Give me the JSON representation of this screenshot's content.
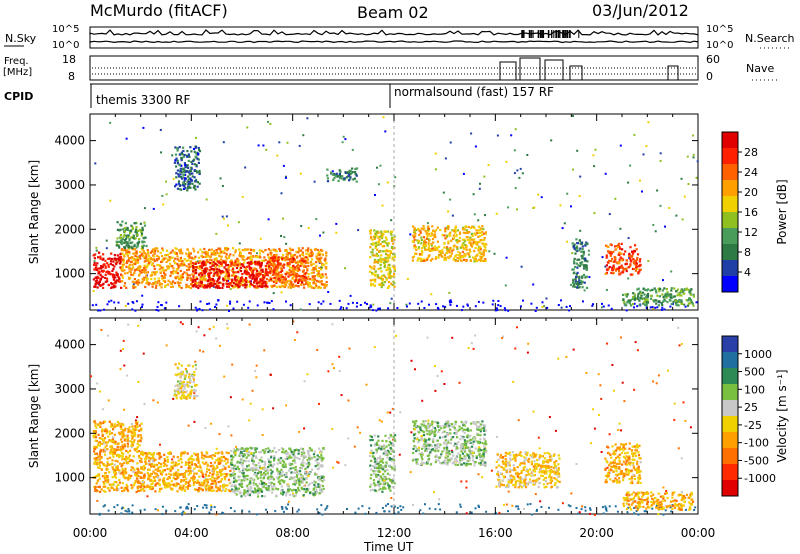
{
  "header": {
    "site": "McMurdo (fitACF)",
    "beam": "Beam 02",
    "date": "03/Jun/2012"
  },
  "strips": {
    "nsky_label": "N.Sky",
    "nsky_ticks": [
      "10^5",
      "10^0"
    ],
    "nsearch_label": "N.Search",
    "nsearch_ticks": [
      "10^5",
      "10^0"
    ],
    "freq_label": "Freq.",
    "freq_unit": "[MHz]",
    "freq_ticks": [
      "18",
      "8"
    ],
    "nave_label": "Nave",
    "nave_ticks": [
      "60",
      "0"
    ],
    "cpid_label": "CPID",
    "cpid_segments": [
      "themis 3300 RF",
      "normalsound (fast) 157 RF"
    ]
  },
  "colors": {
    "power": [
      "#0000ff",
      "#1f3fa6",
      "#2e7a44",
      "#4a9c5a",
      "#90c020",
      "#f0d000",
      "#ffa000",
      "#ff6000",
      "#ff2000",
      "#e00000"
    ],
    "velocity": [
      "#2a3fa8",
      "#1f6fa0",
      "#2e8a55",
      "#7ac040",
      "#c8c8c8",
      "#f0d000",
      "#ffa000",
      "#ff7000",
      "#ff2a00",
      "#e00000"
    ],
    "grid_dash": "#aaaaaa"
  },
  "chart_data": [
    {
      "type": "heatmap",
      "panel": "power",
      "ylabel": "Slant Range [km]",
      "xlabel": "Time UT",
      "ylim": [
        180,
        4600
      ],
      "xlim": [
        0,
        24
      ],
      "x_ticks": [
        "00:00",
        "04:00",
        "08:00",
        "12:00",
        "16:00",
        "20:00",
        "00:00"
      ],
      "y_ticks": [
        1000,
        2000,
        3000,
        4000
      ],
      "colorbar": {
        "label": "Power [dB]",
        "ticks": [
          "28",
          "24",
          "20",
          "16",
          "12",
          "8",
          "4"
        ],
        "range": [
          0,
          30
        ]
      },
      "regions": [
        {
          "t0": 0.1,
          "t1": 1.2,
          "r0": 700,
          "r1": 1500,
          "value": 28
        },
        {
          "t0": 1.2,
          "t1": 9.3,
          "r0": 700,
          "r1": 1600,
          "value": 20
        },
        {
          "t0": 4.0,
          "t1": 7.0,
          "r0": 700,
          "r1": 1300,
          "value": 28
        },
        {
          "t0": 7.0,
          "t1": 8.5,
          "r0": 800,
          "r1": 1400,
          "value": 24
        },
        {
          "t0": 1.0,
          "t1": 2.2,
          "r0": 1600,
          "r1": 2200,
          "value": 10
        },
        {
          "t0": 3.3,
          "t1": 4.3,
          "r0": 2900,
          "r1": 3900,
          "value": 6
        },
        {
          "t0": 9.3,
          "t1": 10.5,
          "r0": 3100,
          "r1": 3400,
          "value": 8
        },
        {
          "t0": 11.0,
          "t1": 12.0,
          "r0": 700,
          "r1": 2000,
          "value": 16
        },
        {
          "t0": 12.7,
          "t1": 15.6,
          "r0": 1300,
          "r1": 2100,
          "value": 18
        },
        {
          "t0": 19.0,
          "t1": 19.6,
          "r0": 700,
          "r1": 1800,
          "value": 8
        },
        {
          "t0": 20.3,
          "t1": 21.7,
          "r0": 1000,
          "r1": 1700,
          "value": 24
        },
        {
          "t0": 21.0,
          "t1": 23.8,
          "r0": 300,
          "r1": 700,
          "value": 10
        }
      ]
    },
    {
      "type": "heatmap",
      "panel": "velocity",
      "ylabel": "Slant Range [km]",
      "xlabel": "Time UT",
      "ylim": [
        180,
        4600
      ],
      "xlim": [
        0,
        24
      ],
      "x_ticks": [
        "00:00",
        "04:00",
        "08:00",
        "12:00",
        "16:00",
        "20:00",
        "00:00"
      ],
      "y_ticks": [
        1000,
        2000,
        3000,
        4000
      ],
      "colorbar": {
        "label": "Velocity [m s⁻¹]",
        "ticks": [
          "1000",
          "500",
          "100",
          "25",
          "-25",
          "-100",
          "-500",
          "-1000"
        ],
        "range": [
          -1250,
          1250
        ]
      },
      "regions": [
        {
          "t0": 0.1,
          "t1": 2.0,
          "r0": 700,
          "r1": 2300,
          "value": -300
        },
        {
          "t0": 2.0,
          "t1": 5.5,
          "r0": 700,
          "r1": 1600,
          "value": -300
        },
        {
          "t0": 5.5,
          "t1": 9.2,
          "r0": 600,
          "r1": 1700,
          "value": 300
        },
        {
          "t0": 3.3,
          "t1": 4.2,
          "r0": 2800,
          "r1": 3600,
          "value": 0
        },
        {
          "t0": 11.0,
          "t1": 12.0,
          "r0": 700,
          "r1": 2000,
          "value": 300
        },
        {
          "t0": 12.7,
          "t1": 15.6,
          "r0": 1300,
          "r1": 2300,
          "value": 300
        },
        {
          "t0": 16.0,
          "t1": 18.5,
          "r0": 800,
          "r1": 1600,
          "value": -200
        },
        {
          "t0": 20.3,
          "t1": 21.7,
          "r0": 900,
          "r1": 1800,
          "value": -300
        },
        {
          "t0": 21.0,
          "t1": 23.8,
          "r0": 300,
          "r1": 700,
          "value": -300
        }
      ]
    }
  ]
}
